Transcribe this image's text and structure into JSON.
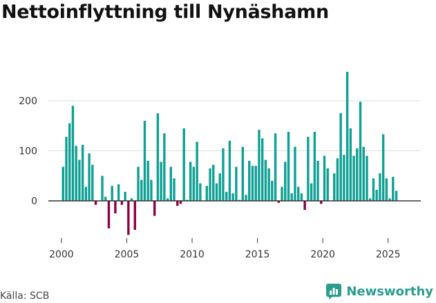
{
  "title": "Nettoinflyttning till Nynäshamn",
  "source": "Källa: SCB",
  "brand": "Newsworthy",
  "colors": {
    "positive": "#0fa094",
    "negative": "#8c0046",
    "grid": "#dddddd",
    "axis": "#333333"
  },
  "chart_data": {
    "type": "bar",
    "xlim": [
      1999.0,
      2027.5
    ],
    "ylim": [
      -70,
      260
    ],
    "x_ticks": [
      2000,
      2005,
      2010,
      2015,
      2020,
      2025
    ],
    "y_ticks": [
      0,
      100,
      200
    ],
    "x": [
      2000.125,
      2000.375,
      2000.625,
      2000.875,
      2001.125,
      2001.375,
      2001.625,
      2001.875,
      2002.125,
      2002.375,
      2002.625,
      2002.875,
      2003.125,
      2003.375,
      2003.625,
      2003.875,
      2004.125,
      2004.375,
      2004.625,
      2004.875,
      2005.125,
      2005.375,
      2005.625,
      2005.875,
      2006.125,
      2006.375,
      2006.625,
      2006.875,
      2007.125,
      2007.375,
      2007.625,
      2007.875,
      2008.125,
      2008.375,
      2008.625,
      2008.875,
      2009.125,
      2009.375,
      2009.625,
      2009.875,
      2010.125,
      2010.375,
      2010.625,
      2010.875,
      2011.125,
      2011.375,
      2011.625,
      2011.875,
      2012.125,
      2012.375,
      2012.625,
      2012.875,
      2013.125,
      2013.375,
      2013.625,
      2013.875,
      2014.125,
      2014.375,
      2014.625,
      2014.875,
      2015.125,
      2015.375,
      2015.625,
      2015.875,
      2016.125,
      2016.375,
      2016.625,
      2016.875,
      2017.125,
      2017.375,
      2017.625,
      2017.875,
      2018.125,
      2018.375,
      2018.625,
      2018.875,
      2019.125,
      2019.375,
      2019.625,
      2019.875,
      2020.125,
      2020.375,
      2020.625,
      2020.875,
      2021.125,
      2021.375,
      2021.625,
      2021.875,
      2022.125,
      2022.375,
      2022.625,
      2022.875,
      2023.125,
      2023.375,
      2023.625,
      2023.875,
      2024.125,
      2024.375,
      2024.625,
      2024.875,
      2025.125,
      2025.375,
      2025.625,
      2025.875
    ],
    "values": [
      68,
      128,
      155,
      190,
      110,
      82,
      112,
      28,
      95,
      72,
      -8,
      0,
      50,
      8,
      -55,
      30,
      -25,
      33,
      -8,
      18,
      -68,
      5,
      -58,
      68,
      42,
      160,
      80,
      42,
      -30,
      175,
      78,
      135,
      5,
      68,
      45,
      -10,
      -6,
      145,
      2,
      78,
      68,
      118,
      35,
      0,
      30,
      65,
      72,
      35,
      55,
      105,
      18,
      120,
      15,
      68,
      2,
      108,
      12,
      80,
      70,
      70,
      142,
      125,
      82,
      65,
      40,
      135,
      -4,
      28,
      78,
      138,
      15,
      108,
      28,
      15,
      -18,
      128,
      35,
      138,
      80,
      -6,
      90,
      65,
      0,
      55,
      85,
      175,
      92,
      258,
      145,
      90,
      105,
      198,
      108,
      90,
      5,
      45,
      22,
      55,
      133,
      45,
      5,
      48,
      20,
      0
    ]
  }
}
